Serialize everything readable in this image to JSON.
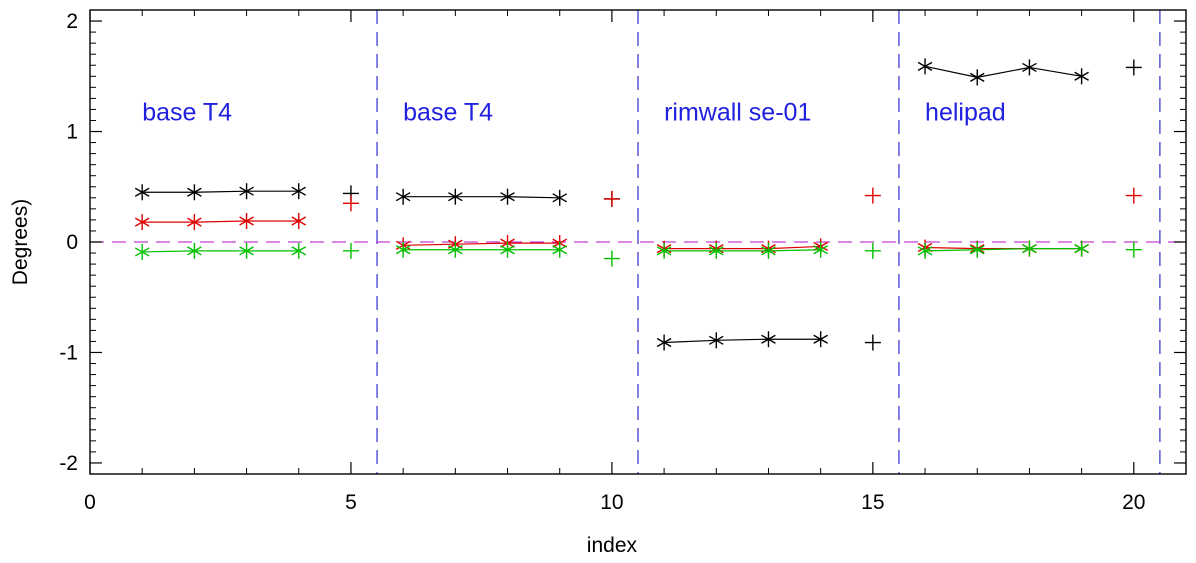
{
  "chart_data": {
    "type": "scatter",
    "xlabel": "index",
    "ylabel": "Degrees)",
    "xlim": [
      0,
      21
    ],
    "ylim": [
      -2.1,
      2.1
    ],
    "xticks": [
      0,
      5,
      10,
      15,
      20
    ],
    "yticks": [
      -2,
      -1,
      0,
      1,
      2
    ],
    "grid": false,
    "colors": {
      "black": "#000000",
      "red": "#e00000",
      "green": "#00c000",
      "divider": "#3030d0",
      "zero_line": "#c040d0",
      "region_label": "#2020e0"
    },
    "dividers_x": [
      5.5,
      10.5,
      15.5,
      20.5
    ],
    "zero_line_y": 0,
    "regions": [
      {
        "label": "base T4",
        "x": 1.0,
        "y": 1.1
      },
      {
        "label": "base T4",
        "x": 6.0,
        "y": 1.1
      },
      {
        "label": "rimwall se-01",
        "x": 11.0,
        "y": 1.1
      },
      {
        "label": "helipad",
        "x": 16.0,
        "y": 1.1
      }
    ],
    "series": [
      {
        "color": "black",
        "marker": "asterisk",
        "line": true,
        "groups": [
          {
            "x": [
              1,
              2,
              3,
              4
            ],
            "y": [
              0.45,
              0.45,
              0.46,
              0.46
            ]
          },
          {
            "x": [
              6,
              7,
              8,
              9
            ],
            "y": [
              0.41,
              0.41,
              0.41,
              0.4
            ]
          },
          {
            "x": [
              11,
              12,
              13,
              14
            ],
            "y": [
              -0.91,
              -0.89,
              -0.88,
              -0.88
            ]
          },
          {
            "x": [
              16,
              17,
              18,
              19
            ],
            "y": [
              1.59,
              1.49,
              1.58,
              1.5
            ]
          }
        ]
      },
      {
        "color": "red",
        "marker": "asterisk",
        "line": true,
        "groups": [
          {
            "x": [
              1,
              2,
              3,
              4
            ],
            "y": [
              0.18,
              0.18,
              0.19,
              0.19
            ]
          },
          {
            "x": [
              6,
              7,
              8,
              9
            ],
            "y": [
              -0.03,
              -0.02,
              -0.01,
              -0.01
            ]
          },
          {
            "x": [
              11,
              12,
              13,
              14
            ],
            "y": [
              -0.06,
              -0.06,
              -0.06,
              -0.04
            ]
          },
          {
            "x": [
              16,
              17,
              18,
              19
            ],
            "y": [
              -0.05,
              -0.06,
              -0.06,
              -0.06
            ]
          }
        ]
      },
      {
        "color": "green",
        "marker": "asterisk",
        "line": true,
        "groups": [
          {
            "x": [
              1,
              2,
              3,
              4
            ],
            "y": [
              -0.09,
              -0.08,
              -0.08,
              -0.08
            ]
          },
          {
            "x": [
              6,
              7,
              8,
              9
            ],
            "y": [
              -0.07,
              -0.07,
              -0.07,
              -0.07
            ]
          },
          {
            "x": [
              11,
              12,
              13,
              14
            ],
            "y": [
              -0.08,
              -0.08,
              -0.08,
              -0.07
            ]
          },
          {
            "x": [
              16,
              17,
              18,
              19
            ],
            "y": [
              -0.08,
              -0.07,
              -0.06,
              -0.06
            ]
          }
        ]
      },
      {
        "color": "black",
        "marker": "plus",
        "line": false,
        "groups": [
          {
            "x": [
              5,
              10,
              15,
              20
            ],
            "y": [
              0.44,
              0.39,
              -0.91,
              1.58
            ]
          }
        ]
      },
      {
        "color": "red",
        "marker": "plus",
        "line": false,
        "groups": [
          {
            "x": [
              5,
              10,
              15,
              20
            ],
            "y": [
              0.35,
              0.39,
              0.42,
              0.42
            ]
          }
        ]
      },
      {
        "color": "green",
        "marker": "plus",
        "line": false,
        "groups": [
          {
            "x": [
              5,
              10,
              15,
              20
            ],
            "y": [
              -0.08,
              -0.15,
              -0.08,
              -0.07
            ]
          }
        ]
      }
    ]
  }
}
